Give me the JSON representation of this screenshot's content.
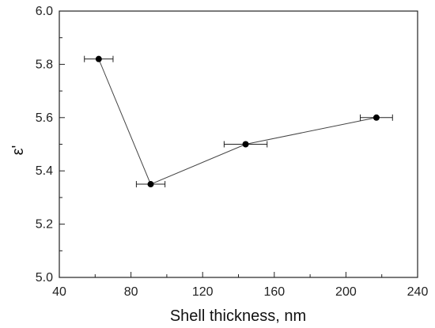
{
  "chart_data": {
    "type": "scatter",
    "xlabel": "Shell thickness, nm",
    "ylabel": "ε'",
    "xlim": [
      40,
      240
    ],
    "ylim": [
      5.0,
      6.0
    ],
    "xticks": [
      "40",
      "80",
      "120",
      "160",
      "200",
      "240"
    ],
    "yticks": [
      "5.0",
      "5.2",
      "5.4",
      "5.6",
      "5.8",
      "6.0"
    ],
    "grid": false,
    "connected": true,
    "series": [
      {
        "points": [
          {
            "x": 62,
            "y": 5.82,
            "xerr": 8
          },
          {
            "x": 91,
            "y": 5.35,
            "xerr": 8
          },
          {
            "x": 144,
            "y": 5.5,
            "xerr": 12
          },
          {
            "x": 217,
            "y": 5.6,
            "xerr": 9
          }
        ]
      }
    ]
  }
}
